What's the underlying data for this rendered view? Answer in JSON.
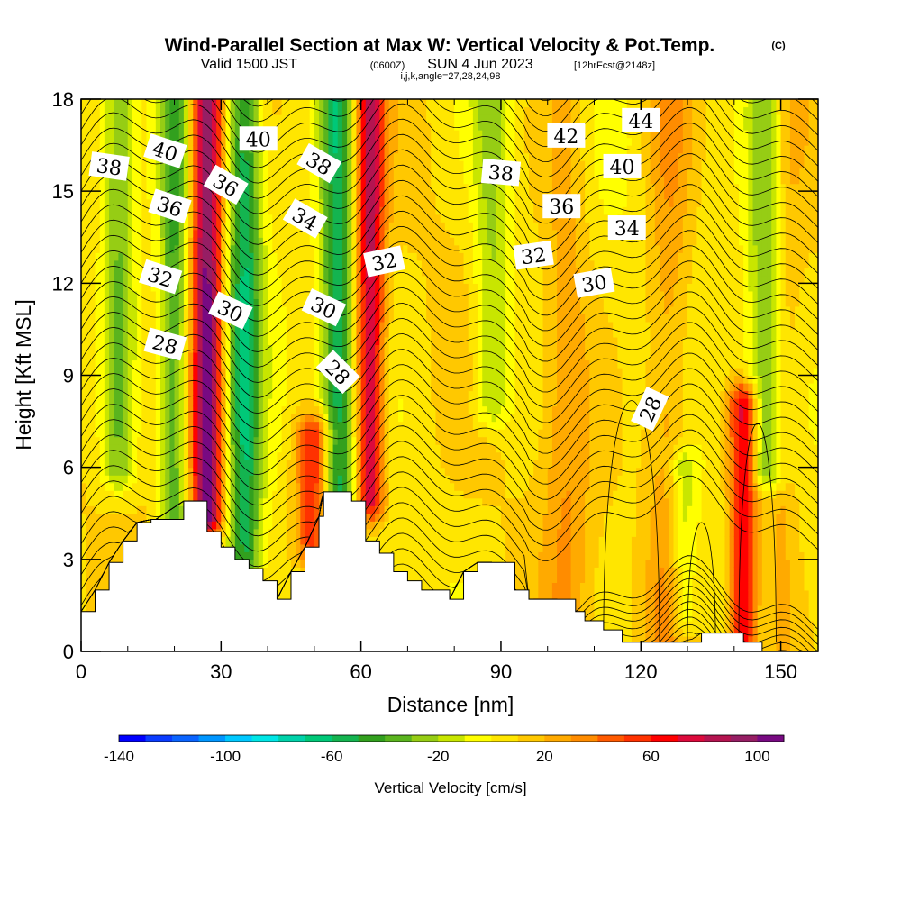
{
  "header": {
    "title": "Wind-Parallel Section at Max W: Vertical Velocity & Pot.Temp.",
    "copyright": "(C)",
    "valid_prefix": "Valid 1500 JST",
    "valid_utc": "(0600Z)",
    "valid_date": "SUN 4 Jun 2023",
    "forecast": "[12hrFcst@2148z]",
    "grid_info": "i,j,k,angle=27,28,24,98"
  },
  "chart_data": {
    "type": "heatmap",
    "xlabel": "Distance [nm]",
    "ylabel": "Height [Kft MSL]",
    "xlim": [
      0,
      158
    ],
    "ylim": [
      0,
      18
    ],
    "x_ticks": [
      "0",
      "30",
      "60",
      "90",
      "120",
      "150"
    ],
    "y_ticks": [
      "0",
      "3",
      "6",
      "9",
      "12",
      "15",
      "18"
    ],
    "x_tick_values": [
      0,
      30,
      60,
      90,
      120,
      150
    ],
    "y_tick_values": [
      0,
      3,
      6,
      9,
      12,
      15,
      18
    ],
    "terrain": [
      {
        "x": 0,
        "h": 1.3
      },
      {
        "x": 3,
        "h": 2.0
      },
      {
        "x": 6,
        "h": 2.9
      },
      {
        "x": 9,
        "h": 3.6
      },
      {
        "x": 12,
        "h": 4.2
      },
      {
        "x": 15,
        "h": 4.3
      },
      {
        "x": 16,
        "h": 4.3
      },
      {
        "x": 22,
        "h": 4.9
      },
      {
        "x": 26,
        "h": 4.9
      },
      {
        "x": 27,
        "h": 3.9
      },
      {
        "x": 30,
        "h": 3.4
      },
      {
        "x": 33,
        "h": 3.0
      },
      {
        "x": 36,
        "h": 2.7
      },
      {
        "x": 39,
        "h": 2.3
      },
      {
        "x": 42,
        "h": 1.7
      },
      {
        "x": 45,
        "h": 2.6
      },
      {
        "x": 48,
        "h": 3.4
      },
      {
        "x": 51,
        "h": 4.4
      },
      {
        "x": 52,
        "h": 5.2
      },
      {
        "x": 58,
        "h": 4.9
      },
      {
        "x": 61,
        "h": 3.6
      },
      {
        "x": 64,
        "h": 3.2
      },
      {
        "x": 67,
        "h": 2.6
      },
      {
        "x": 70,
        "h": 2.3
      },
      {
        "x": 73,
        "h": 2.0
      },
      {
        "x": 79,
        "h": 1.7
      },
      {
        "x": 82,
        "h": 2.6
      },
      {
        "x": 85,
        "h": 2.9
      },
      {
        "x": 88,
        "h": 2.9
      },
      {
        "x": 93,
        "h": 2.0
      },
      {
        "x": 96,
        "h": 1.7
      },
      {
        "x": 102,
        "h": 1.7
      },
      {
        "x": 106,
        "h": 1.3
      },
      {
        "x": 108,
        "h": 1.0
      },
      {
        "x": 112,
        "h": 0.7
      },
      {
        "x": 116,
        "h": 0.3
      },
      {
        "x": 130,
        "h": 0.3
      },
      {
        "x": 133,
        "h": 0.6
      },
      {
        "x": 142,
        "h": 0.3
      },
      {
        "x": 146,
        "h": 0.0
      },
      {
        "x": 158,
        "h": 0.0
      }
    ],
    "updraft_bands": [
      {
        "x": 27,
        "w": 3.2,
        "peak": 100,
        "ymin": 4.5,
        "ymax": 18
      },
      {
        "x": 62,
        "w": 3.0,
        "peak": 75,
        "ymin": 5.0,
        "ymax": 18
      },
      {
        "x": 50,
        "w": 4.0,
        "peak": 60,
        "ymin": 3.5,
        "ymax": 7
      },
      {
        "x": 142,
        "w": 3.0,
        "peak": 70,
        "ymin": 0.5,
        "ymax": 8
      },
      {
        "x": 104,
        "w": 5,
        "peak": 20,
        "ymin": 0,
        "ymax": 18
      },
      {
        "x": 126,
        "w": 5,
        "peak": 25,
        "ymin": 0,
        "ymax": 18
      },
      {
        "x": 150,
        "w": 4,
        "peak": 20,
        "ymin": 0,
        "ymax": 18
      }
    ],
    "downdraft_bands": [
      {
        "x": 35,
        "w": 3.5,
        "peak": -60,
        "ymin": 3,
        "ymax": 18
      },
      {
        "x": 55,
        "w": 3.5,
        "peak": -65,
        "ymin": 4,
        "ymax": 18
      },
      {
        "x": 20,
        "w": 3.0,
        "peak": -45,
        "ymin": 4,
        "ymax": 18
      },
      {
        "x": 8,
        "w": 3.5,
        "peak": -35,
        "ymin": 6,
        "ymax": 18
      },
      {
        "x": 88,
        "w": 4,
        "peak": -30,
        "ymin": 8,
        "ymax": 18
      },
      {
        "x": 147,
        "w": 4,
        "peak": -45,
        "ymin": 6,
        "ymax": 18
      },
      {
        "x": 129,
        "w": 3,
        "peak": -30,
        "ymin": 1,
        "ymax": 6
      }
    ],
    "contour_levels": [
      28,
      30,
      32,
      34,
      36,
      38,
      40,
      42,
      44
    ],
    "contour_labels": [
      {
        "text": "38",
        "x": 6,
        "y": 15.8,
        "angle": 8
      },
      {
        "text": "40",
        "x": 18,
        "y": 16.3,
        "angle": 18
      },
      {
        "text": "36",
        "x": 19,
        "y": 14.5,
        "angle": 18
      },
      {
        "text": "32",
        "x": 17,
        "y": 12.2,
        "angle": 18
      },
      {
        "text": "28",
        "x": 18,
        "y": 10.0,
        "angle": 15
      },
      {
        "text": "36",
        "x": 31,
        "y": 15.2,
        "angle": 30
      },
      {
        "text": "40",
        "x": 38,
        "y": 16.7,
        "angle": 0
      },
      {
        "text": "30",
        "x": 32,
        "y": 11.1,
        "angle": 25
      },
      {
        "text": "38",
        "x": 51,
        "y": 15.9,
        "angle": 30
      },
      {
        "text": "34",
        "x": 48,
        "y": 14.1,
        "angle": 30
      },
      {
        "text": "30",
        "x": 52,
        "y": 11.2,
        "angle": 25
      },
      {
        "text": "28",
        "x": 55,
        "y": 9.1,
        "angle": 45
      },
      {
        "text": "32",
        "x": 65,
        "y": 12.7,
        "angle": -12
      },
      {
        "text": "38",
        "x": 90,
        "y": 15.6,
        "angle": 5
      },
      {
        "text": "32",
        "x": 97,
        "y": 12.9,
        "angle": -8
      },
      {
        "text": "36",
        "x": 103,
        "y": 14.5,
        "angle": 0
      },
      {
        "text": "42",
        "x": 104,
        "y": 16.8,
        "angle": 0
      },
      {
        "text": "30",
        "x": 110,
        "y": 12.0,
        "angle": -10
      },
      {
        "text": "44",
        "x": 120,
        "y": 17.3,
        "angle": 0
      },
      {
        "text": "40",
        "x": 116,
        "y": 15.8,
        "angle": 0
      },
      {
        "text": "34",
        "x": 117,
        "y": 13.8,
        "angle": 0
      },
      {
        "text": "28",
        "x": 122,
        "y": 7.9,
        "angle": -65
      }
    ]
  },
  "colorbar": {
    "label": "Vertical Velocity [cm/s]",
    "min": -140,
    "max": 110,
    "step": 10,
    "tick_labels": [
      "-140",
      "-100",
      "-60",
      "-20",
      "20",
      "60",
      "100"
    ],
    "tick_values": [
      -140,
      -100,
      -60,
      -20,
      20,
      60,
      100
    ],
    "colors": [
      "#0000ff",
      "#0a3cff",
      "#0a64ff",
      "#0096ff",
      "#00c8ff",
      "#00e6e6",
      "#00d2aa",
      "#00c878",
      "#14b450",
      "#32a01e",
      "#5ab41e",
      "#96cd14",
      "#c8e600",
      "#ffff00",
      "#ffe600",
      "#ffc800",
      "#ffaa00",
      "#ff8c00",
      "#ff5a00",
      "#ff3200",
      "#ff0000",
      "#dc0a3c",
      "#b41450",
      "#961e64",
      "#780a82"
    ]
  }
}
